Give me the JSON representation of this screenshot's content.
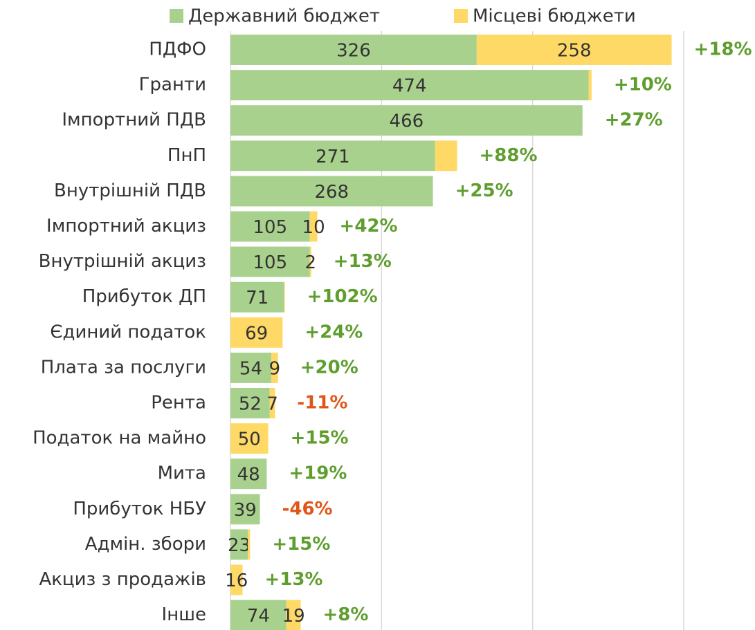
{
  "chart_data": {
    "type": "stacked-bar-horizontal",
    "categories": [
      "ПДФО",
      "Гранти",
      "Імпортний ПДВ",
      "ПнП",
      "Внутрішній ПДВ",
      "Імпортний акциз",
      "Внутрішній акциз",
      "Прибуток ДП",
      "Єдиний податок",
      "Плата за послуги",
      "Рента",
      "Податок на майно",
      "Мита",
      "Прибуток НБУ",
      "Адмін. збори",
      "Акциз з продажів",
      "Інше"
    ],
    "series": [
      {
        "name": "Державний бюджет",
        "color": "#a9d18e",
        "values": [
          326,
          474,
          466,
          271,
          268,
          105,
          105,
          71,
          0,
          54,
          52,
          0,
          48,
          39,
          23,
          0,
          74
        ],
        "value_labels": [
          "326",
          "474",
          "466",
          "271",
          "268",
          "105",
          "105",
          "71",
          null,
          "54",
          "52",
          null,
          "48",
          "39",
          "23",
          null,
          "74"
        ]
      },
      {
        "name": "Місцеві бюджети",
        "color": "#ffd966",
        "values": [
          258,
          4,
          0,
          29,
          0,
          10,
          2,
          1,
          69,
          9,
          7,
          50,
          0,
          0,
          3,
          16,
          19
        ],
        "value_labels": [
          "258",
          null,
          null,
          null,
          null,
          "10",
          "2",
          null,
          "69",
          "9",
          "7",
          "50",
          null,
          null,
          null,
          "16",
          "19"
        ]
      }
    ],
    "changes": [
      "+18%",
      "+10%",
      "+27%",
      "+88%",
      "+25%",
      "+42%",
      "+13%",
      "+102%",
      "+24%",
      "+20%",
      "-11%",
      "+15%",
      "+19%",
      "-46%",
      "+15%",
      "+13%",
      "+8%"
    ],
    "xlim": [
      0,
      600
    ],
    "xticks": [
      0,
      200,
      400,
      600
    ],
    "grid": true,
    "legend": "top"
  }
}
